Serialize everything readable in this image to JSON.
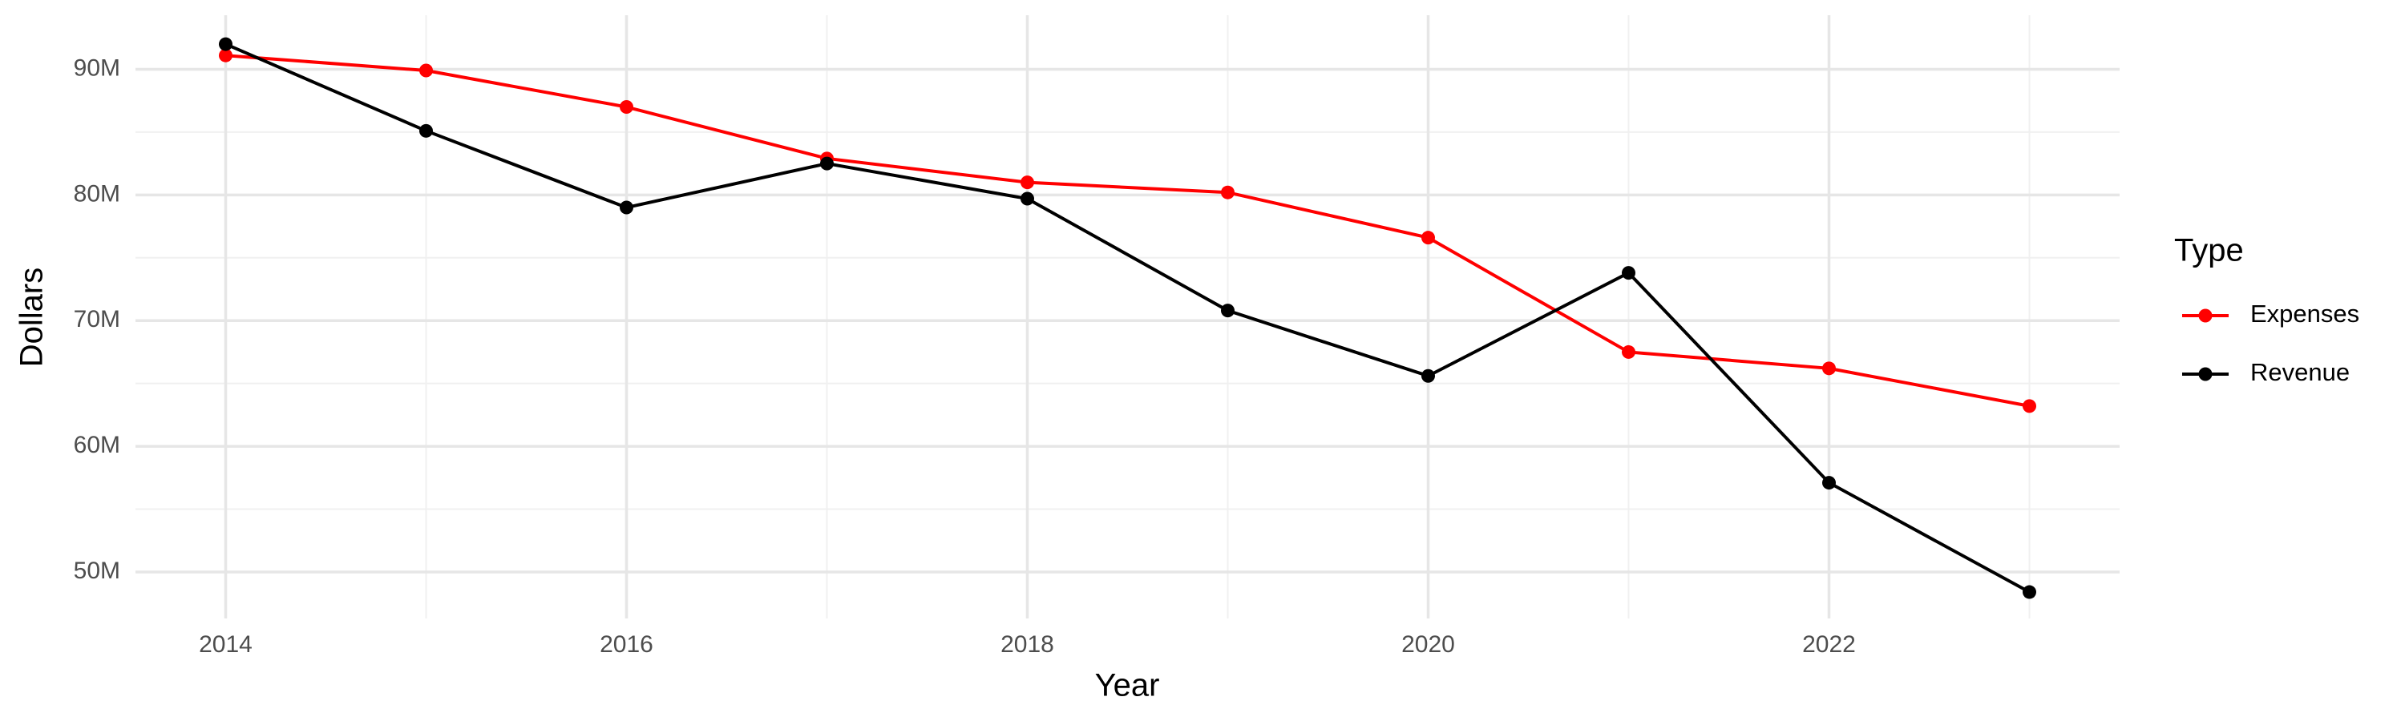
{
  "chart_data": {
    "type": "line",
    "x_label": "Year",
    "y_label": "Dollars",
    "legend_title": "Type",
    "legend": "right",
    "grid": true,
    "x": [
      2014,
      2015,
      2016,
      2017,
      2018,
      2019,
      2020,
      2021,
      2022,
      2023
    ],
    "series": [
      {
        "name": "Expenses",
        "color": "#ff0000",
        "values": [
          91100000,
          89900000,
          87000000,
          82900000,
          81000000,
          80200000,
          76600000,
          67500000,
          66200000,
          63200000
        ]
      },
      {
        "name": "Revenue",
        "color": "#000000",
        "values": [
          92000000,
          85100000,
          79000000,
          82500000,
          79700000,
          70800000,
          65600000,
          73800000,
          57100000,
          48400000
        ]
      }
    ],
    "xlim": [
      2013.55,
      2023.45
    ],
    "xticks": [
      2014,
      2016,
      2018,
      2020,
      2022
    ],
    "ylim": [
      46300000,
      94300000
    ],
    "yticks": [
      {
        "value": 50000000,
        "label": "50M"
      },
      {
        "value": 60000000,
        "label": "60M"
      },
      {
        "value": 70000000,
        "label": "70M"
      },
      {
        "value": 80000000,
        "label": "80M"
      },
      {
        "value": 90000000,
        "label": "90M"
      }
    ]
  }
}
